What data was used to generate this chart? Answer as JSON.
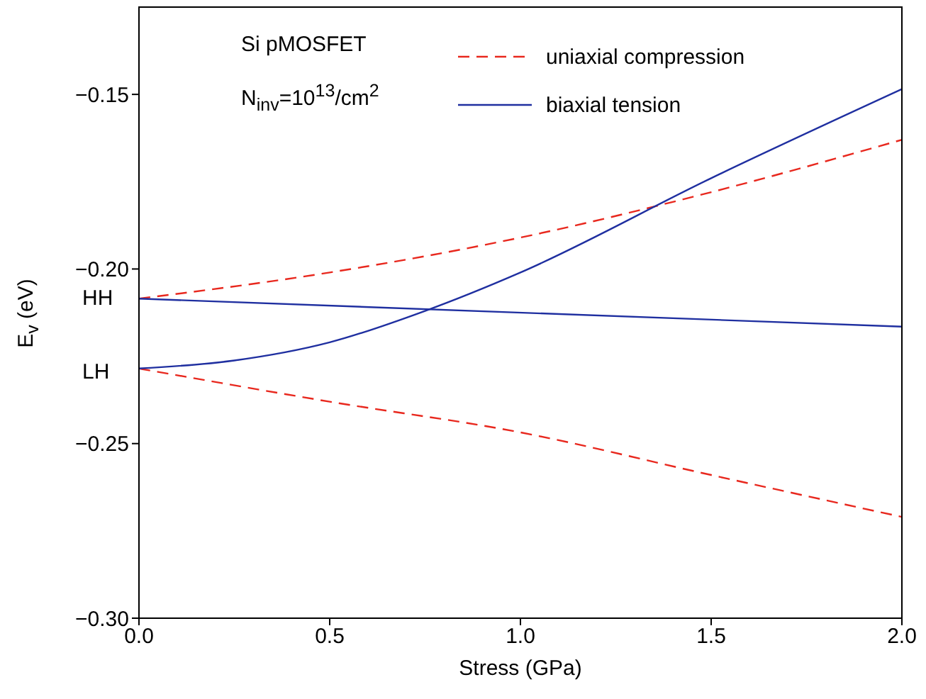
{
  "chart_data": {
    "type": "line",
    "xlabel": "Stress (GPa)",
    "ylabel": "E$_{v}$ (eV)",
    "xlim": [
      0,
      2
    ],
    "xticks": [
      {
        "value": 0,
        "label": "0.0"
      },
      {
        "value": 0.5,
        "label": "0.5"
      },
      {
        "value": 1,
        "label": "1.0"
      },
      {
        "value": 1.5,
        "label": "1.5"
      },
      {
        "value": 2,
        "label": "2.0"
      }
    ],
    "ylim": [
      -0.3,
      -0.125
    ],
    "yticks": [
      {
        "value": -0.3,
        "label": "−0.30"
      },
      {
        "value": -0.25,
        "label": "−0.25"
      },
      {
        "value": -0.2,
        "label": "−0.20"
      },
      {
        "value": -0.15,
        "label": "−0.15"
      }
    ],
    "grid": false,
    "legend": "top right",
    "marker": "none",
    "series": [
      {
        "name": "uniaxial compression",
        "color": "#e8281e",
        "line_style": "dashed",
        "x": [
          0,
          0.5,
          1,
          1.5,
          2
        ],
        "values": [
          -0.2085,
          -0.201,
          -0.191,
          -0.178,
          -0.163
        ]
      },
      {
        "color": "#e8281e",
        "line_style": "dashed",
        "x": [
          0,
          0.5,
          1,
          1.5,
          2
        ],
        "values": [
          -0.2285,
          -0.238,
          -0.2468,
          -0.259,
          -0.271
        ]
      },
      {
        "name": "biaxial tension",
        "color": "#1f2fa0",
        "line_style": "solid",
        "x": [
          0,
          2
        ],
        "values": [
          -0.2085,
          -0.2165
        ]
      },
      {
        "color": "#1f2fa0",
        "line_style": "solid",
        "x": [
          0,
          0.25,
          0.5,
          0.75,
          1,
          1.5,
          2
        ],
        "values": [
          -0.2285,
          -0.2262,
          -0.221,
          -0.212,
          -0.201,
          -0.174,
          -0.1485
        ]
      }
    ],
    "annotations": [
      "Si pMOSFET",
      "N$_{inv}$=10$^{13}$/cm$^{2}$",
      {
        "text": "HH",
        "x": 0,
        "y": -0.2085
      },
      {
        "text": "LH",
        "x": 0,
        "y": -0.2285
      }
    ]
  }
}
